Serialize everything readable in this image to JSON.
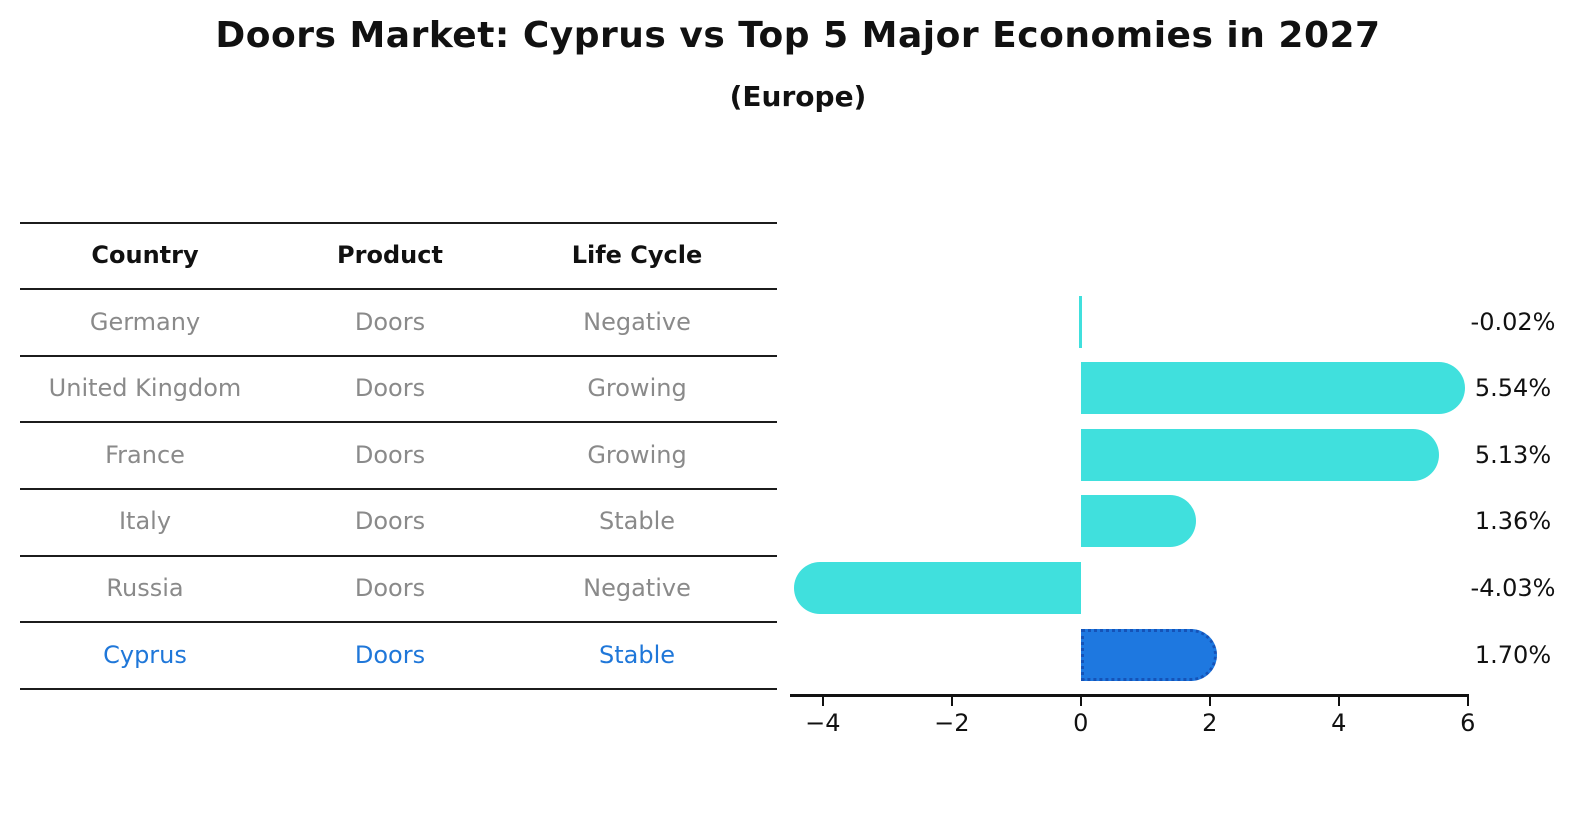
{
  "title": "Doors Market: Cyprus vs Top 5 Major Economies in 2027",
  "subtitle": "(Europe)",
  "table": {
    "headers": [
      "Country",
      "Product",
      "Life Cycle"
    ],
    "rows": [
      {
        "country": "Germany",
        "product": "Doors",
        "life_cycle": "Negative",
        "highlighted": false
      },
      {
        "country": "United Kingdom",
        "product": "Doors",
        "life_cycle": "Growing",
        "highlighted": false
      },
      {
        "country": "France",
        "product": "Doors",
        "life_cycle": "Growing",
        "highlighted": false
      },
      {
        "country": "Italy",
        "product": "Doors",
        "life_cycle": "Stable",
        "highlighted": false
      },
      {
        "country": "Russia",
        "product": "Doors",
        "life_cycle": "Negative",
        "highlighted": false
      },
      {
        "country": "Cyprus",
        "product": "Doors",
        "life_cycle": "Stable",
        "highlighted": true
      }
    ]
  },
  "chart_data": {
    "type": "bar",
    "orientation": "horizontal",
    "title": "Doors Market: Cyprus vs Top 5 Major Economies in 2027 (Europe)",
    "categories": [
      "Germany",
      "United Kingdom",
      "France",
      "Italy",
      "Russia",
      "Cyprus"
    ],
    "values": [
      -0.02,
      5.54,
      5.13,
      1.36,
      -4.03,
      1.7
    ],
    "value_labels": [
      "-0.02%",
      "5.54%",
      "5.13%",
      "1.36%",
      "-4.03%",
      "1.70%"
    ],
    "x_tick_values": [
      -4,
      -2,
      0,
      2,
      4,
      6
    ],
    "x_tick_labels": [
      "−4",
      "−2",
      "0",
      "2",
      "4",
      "6"
    ],
    "xlim": [
      -4.51,
      6.02
    ],
    "grid": false,
    "legend": false,
    "highlight_index": 5,
    "bar_color": "#40E0DD",
    "highlight_bar_color": "#1E78E0",
    "highlight_border_color": "#1553B8"
  },
  "colors": {
    "background": "#FFFFFF",
    "text": "#111111",
    "muted_text": "#8A8A8A",
    "highlight_text": "#1F77D9",
    "table_line": "#1C1C1C",
    "axis": "#111111"
  }
}
